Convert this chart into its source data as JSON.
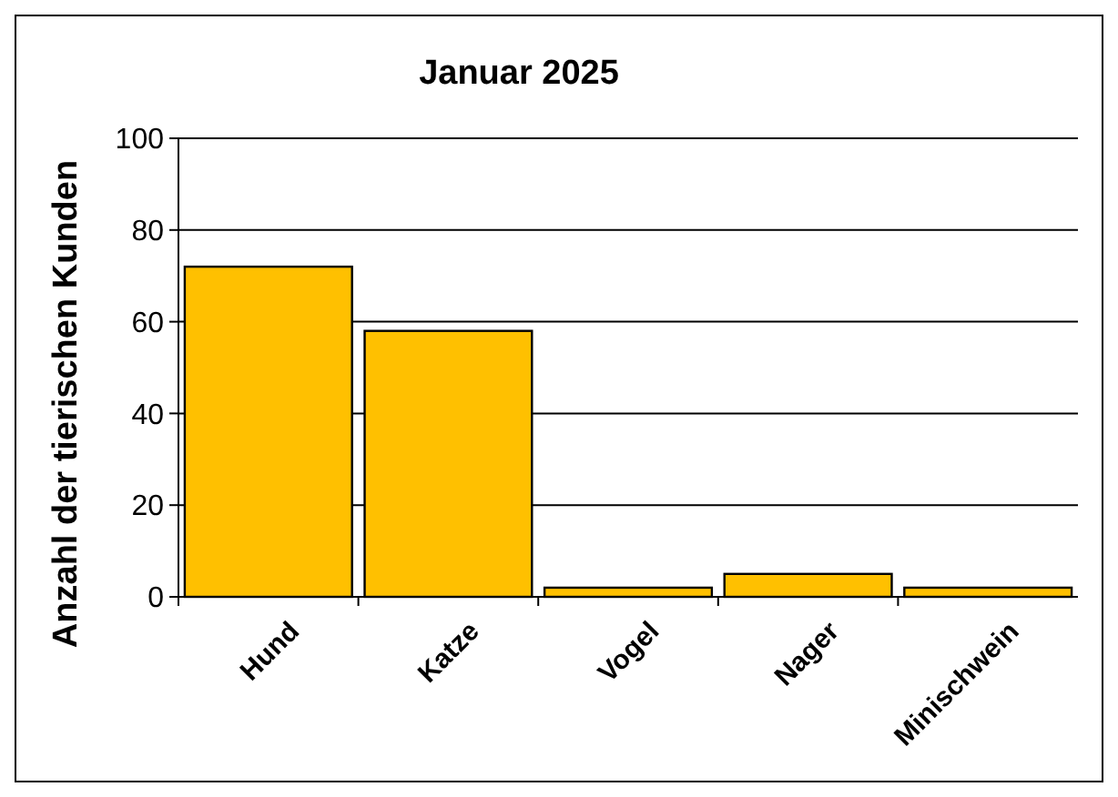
{
  "chart_data": {
    "type": "bar",
    "title": "Januar 2025",
    "ylabel": "Anzahl der tierischen Kunden",
    "categories": [
      "Hund",
      "Katze",
      "Vogel",
      "Nager",
      "Minischwein"
    ],
    "values": [
      72,
      58,
      2,
      5,
      2
    ],
    "color": "#ffc000",
    "ylim": [
      0,
      100
    ],
    "yticks": [
      0,
      20,
      40,
      60,
      80,
      100
    ],
    "grid": "y"
  }
}
